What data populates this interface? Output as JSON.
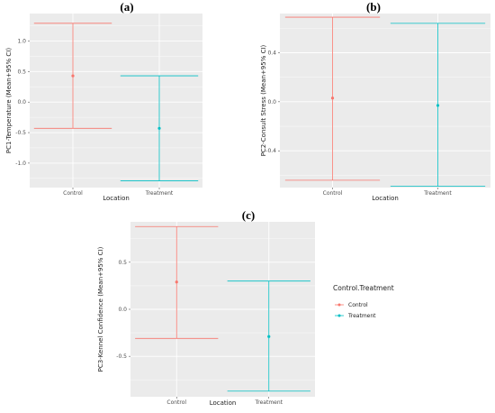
{
  "colors": {
    "Control": "#F8766D",
    "Treatment": "#00BFC4",
    "panel_bg": "#EBEBEB",
    "grid": "#FFFFFF"
  },
  "chart_data": [
    {
      "type": "errorbar",
      "panel_label": "(a)",
      "xlabel": "Location",
      "ylabel": "PC1-Temperature (Mean+95% CI)",
      "categories": [
        "Control",
        "Treatment"
      ],
      "ylim": [
        -1.4,
        1.45
      ],
      "yticks": [
        -1.0,
        -0.5,
        0.0,
        0.5,
        1.0
      ],
      "ytick_labels": [
        "-1.0",
        "-0.5",
        "0.0",
        "0.5",
        "1.0"
      ],
      "series": [
        {
          "name": "Control",
          "mean": 0.43,
          "lower": -0.43,
          "upper": 1.29
        },
        {
          "name": "Treatment",
          "mean": -0.43,
          "lower": -1.29,
          "upper": 0.43
        }
      ],
      "grid": true
    },
    {
      "type": "errorbar",
      "panel_label": "(b)",
      "xlabel": "Location",
      "ylabel": "PC2-Consult Stress (Mean+95% CI)",
      "categories": [
        "Control",
        "Treatment"
      ],
      "ylim": [
        -0.7,
        0.72
      ],
      "yticks": [
        -0.4,
        0.0,
        0.4
      ],
      "ytick_labels": [
        "-0.4",
        "0.0",
        "0.4"
      ],
      "series": [
        {
          "name": "Control",
          "mean": 0.03,
          "lower": -0.64,
          "upper": 0.69
        },
        {
          "name": "Treatment",
          "mean": -0.03,
          "lower": -0.69,
          "upper": 0.64
        }
      ],
      "grid": true
    },
    {
      "type": "errorbar",
      "panel_label": "(c)",
      "xlabel": "Location",
      "ylabel": "PC3-Kennel Confidence (Mean+95% CI)",
      "categories": [
        "Control",
        "Treatment"
      ],
      "ylim": [
        -0.93,
        0.93
      ],
      "yticks": [
        -0.5,
        0.0,
        0.5
      ],
      "ytick_labels": [
        "-0.5",
        "0.0",
        "0.5"
      ],
      "series": [
        {
          "name": "Control",
          "mean": 0.29,
          "lower": -0.31,
          "upper": 0.88
        },
        {
          "name": "Treatment",
          "mean": -0.29,
          "lower": -0.87,
          "upper": 0.3
        }
      ],
      "grid": true,
      "legend": {
        "title": "Control.Treatment",
        "entries": [
          "Control",
          "Treatment"
        ],
        "placement": "right"
      }
    }
  ]
}
